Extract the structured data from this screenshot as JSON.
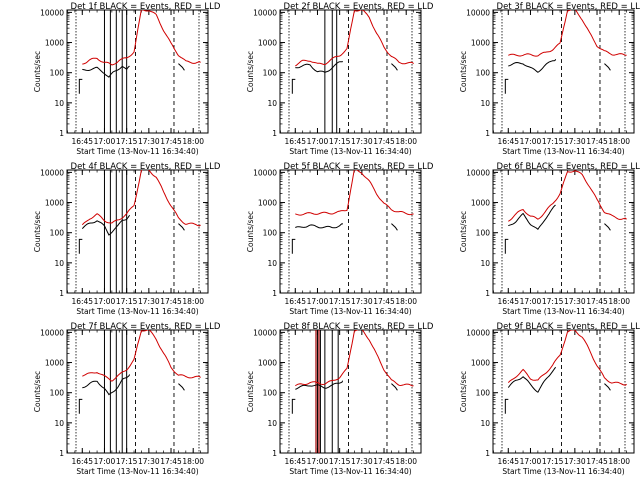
{
  "figure": {
    "ylabel": "Counts/sec",
    "xlabel": "Start Time (13-Nov-11 16:34:40)",
    "y_ticks": [
      "1",
      "10",
      "100",
      "1000",
      "10000"
    ],
    "x_ticks": [
      "16:45",
      "17:00",
      "17:15",
      "17:30",
      "17:45",
      "18:00"
    ],
    "colors": {
      "events": "#000000",
      "lld": "#d00000",
      "axes": "#000000",
      "background": "#ffffff"
    }
  },
  "chart_data": [
    {
      "type": "line",
      "title": "Det 1f BLACK = Events, RED = LLD",
      "xlabel": "Start Time (13-Nov-11 16:34:40)",
      "ylabel": "Counts/sec",
      "yscale": "log",
      "ylim": [
        1,
        12000
      ],
      "xlim": [
        "16:34:40",
        "18:10"
      ],
      "series": [
        {
          "name": "Events",
          "color": "#000000",
          "x": [
            "16:45",
            "16:50",
            "16:55",
            "17:00",
            "17:03",
            "17:06",
            "17:09",
            "17:12",
            "17:15",
            "17:17"
          ],
          "y": [
            120,
            130,
            140,
            100,
            70,
            100,
            130,
            170,
            120,
            160
          ]
        },
        {
          "name": "LLD",
          "color": "#d00000",
          "x": [
            "16:45",
            "16:50",
            "16:55",
            "17:00",
            "17:05",
            "17:10",
            "17:15",
            "17:20",
            "17:25",
            "17:30",
            "17:35",
            "17:40",
            "17:45",
            "17:50",
            "17:55",
            "18:00",
            "18:05"
          ],
          "y": [
            200,
            260,
            300,
            220,
            180,
            260,
            300,
            500,
            12000,
            12000,
            8000,
            2600,
            900,
            400,
            230,
            220,
            220
          ]
        }
      ],
      "vlines": [
        "17:00",
        "17:04",
        "17:08",
        "17:12",
        "17:15"
      ]
    },
    {
      "type": "line",
      "title": "Det 2f BLACK = Events, RED = LLD",
      "xlabel": "Start Time (13-Nov-11 16:34:40)",
      "ylabel": "Counts/sec",
      "yscale": "log",
      "ylim": [
        1,
        12000
      ],
      "xlim": [
        "16:34:40",
        "18:10"
      ],
      "series": [
        {
          "name": "Events",
          "color": "#000000",
          "x": [
            "16:45",
            "16:50",
            "16:55",
            "17:00",
            "17:05",
            "17:10",
            "17:15",
            "17:17"
          ],
          "y": [
            150,
            170,
            180,
            110,
            100,
            150,
            220,
            240
          ]
        },
        {
          "name": "LLD",
          "color": "#d00000",
          "x": [
            "16:45",
            "16:50",
            "16:55",
            "17:00",
            "17:05",
            "17:10",
            "17:15",
            "17:20",
            "17:25",
            "17:30",
            "17:35",
            "17:40",
            "17:45",
            "17:50",
            "17:55",
            "18:00",
            "18:05"
          ],
          "y": [
            180,
            240,
            260,
            190,
            200,
            280,
            380,
            600,
            12000,
            12000,
            7000,
            2000,
            700,
            350,
            220,
            210,
            200
          ]
        }
      ],
      "vlines": [
        "17:05",
        "17:10",
        "17:13"
      ]
    },
    {
      "type": "line",
      "title": "Det 3f BLACK = Events, RED = LLD",
      "xlabel": "Start Time (13-Nov-11 16:34:40)",
      "ylabel": "Counts/sec",
      "yscale": "log",
      "ylim": [
        1,
        12000
      ],
      "xlim": [
        "16:34:40",
        "18:10"
      ],
      "series": [
        {
          "name": "Events",
          "color": "#000000",
          "x": [
            "16:45",
            "16:50",
            "16:55",
            "17:00",
            "17:05",
            "17:10",
            "17:15",
            "17:17"
          ],
          "y": [
            180,
            200,
            210,
            140,
            110,
            170,
            260,
            280
          ]
        },
        {
          "name": "LLD",
          "color": "#d00000",
          "x": [
            "16:45",
            "16:50",
            "16:55",
            "17:00",
            "17:05",
            "17:10",
            "17:15",
            "17:20",
            "17:25",
            "17:30",
            "17:35",
            "17:40",
            "17:45",
            "17:50",
            "17:55",
            "18:00",
            "18:05"
          ],
          "y": [
            380,
            380,
            390,
            390,
            380,
            450,
            600,
            900,
            12000,
            12000,
            6000,
            2000,
            800,
            500,
            420,
            400,
            380
          ]
        }
      ],
      "vlines": []
    },
    {
      "type": "line",
      "title": "Det 4f BLACK = Events, RED = LLD",
      "xlabel": "Start Time (13-Nov-11 16:34:40)",
      "ylabel": "Counts/sec",
      "yscale": "log",
      "ylim": [
        1,
        12000
      ],
      "xlim": [
        "16:34:40",
        "18:10"
      ],
      "series": [
        {
          "name": "Events",
          "color": "#000000",
          "x": [
            "16:45",
            "16:50",
            "16:55",
            "17:00",
            "17:03",
            "17:06",
            "17:09",
            "17:12",
            "17:15",
            "17:17"
          ],
          "y": [
            140,
            200,
            260,
            160,
            90,
            120,
            160,
            260,
            300,
            380
          ]
        },
        {
          "name": "LLD",
          "color": "#d00000",
          "x": [
            "16:45",
            "16:50",
            "16:55",
            "17:00",
            "17:05",
            "17:10",
            "17:15",
            "17:20",
            "17:25",
            "17:30",
            "17:35",
            "17:40",
            "17:45",
            "17:50",
            "17:55",
            "18:00",
            "18:05"
          ],
          "y": [
            170,
            300,
            400,
            260,
            200,
            280,
            420,
            800,
            12000,
            12000,
            7000,
            2200,
            800,
            300,
            200,
            190,
            180
          ]
        }
      ],
      "vlines": [
        "17:00",
        "17:04",
        "17:08",
        "17:12",
        "17:15"
      ]
    },
    {
      "type": "line",
      "title": "Det 5f BLACK = Events, RED = LLD",
      "xlabel": "Start Time (13-Nov-11 16:34:40)",
      "ylabel": "Counts/sec",
      "yscale": "log",
      "ylim": [
        1,
        12000
      ],
      "xlim": [
        "16:34:40",
        "18:10"
      ],
      "series": [
        {
          "name": "Events",
          "color": "#000000",
          "x": [
            "16:45",
            "16:50",
            "16:55",
            "17:00",
            "17:05",
            "17:10",
            "17:15",
            "17:17"
          ],
          "y": [
            140,
            160,
            170,
            160,
            150,
            150,
            170,
            190
          ]
        },
        {
          "name": "LLD",
          "color": "#d00000",
          "x": [
            "16:45",
            "16:50",
            "16:55",
            "17:00",
            "17:05",
            "17:10",
            "17:15",
            "17:20",
            "17:25",
            "17:30",
            "17:35",
            "17:40",
            "17:45",
            "17:50",
            "17:55",
            "18:00",
            "18:05"
          ],
          "y": [
            400,
            420,
            430,
            440,
            440,
            450,
            480,
            600,
            12000,
            10000,
            5000,
            2000,
            900,
            600,
            480,
            440,
            420
          ]
        }
      ],
      "vlines": []
    },
    {
      "type": "line",
      "title": "Det 6f BLACK = Events, RED = LLD",
      "xlabel": "Start Time (13-Nov-11 16:34:40)",
      "ylabel": "Counts/sec",
      "yscale": "log",
      "ylim": [
        1,
        12000
      ],
      "xlim": [
        "16:34:40",
        "18:10"
      ],
      "series": [
        {
          "name": "Events",
          "color": "#000000",
          "x": [
            "16:45",
            "16:50",
            "16:55",
            "17:00",
            "17:05",
            "17:10",
            "17:15",
            "17:17"
          ],
          "y": [
            160,
            240,
            400,
            200,
            120,
            300,
            600,
            800
          ]
        },
        {
          "name": "LLD",
          "color": "#d00000",
          "x": [
            "16:45",
            "16:50",
            "16:55",
            "17:00",
            "17:05",
            "17:10",
            "17:15",
            "17:20",
            "17:25",
            "17:30",
            "17:35",
            "17:40",
            "17:45",
            "17:50",
            "17:55",
            "18:00",
            "18:05"
          ],
          "y": [
            250,
            400,
            600,
            350,
            280,
            500,
            900,
            2000,
            10000,
            12000,
            8000,
            3500,
            1200,
            500,
            350,
            300,
            280
          ]
        }
      ],
      "vlines": []
    },
    {
      "type": "line",
      "title": "Det 7f BLACK = Events, RED = LLD",
      "xlabel": "Start Time (13-Nov-11 16:34:40)",
      "ylabel": "Counts/sec",
      "yscale": "log",
      "ylim": [
        1,
        12000
      ],
      "xlim": [
        "16:34:40",
        "18:10"
      ],
      "series": [
        {
          "name": "Events",
          "color": "#000000",
          "x": [
            "16:45",
            "16:50",
            "16:55",
            "17:00",
            "17:03",
            "17:06",
            "17:09",
            "17:12",
            "17:15",
            "17:17"
          ],
          "y": [
            150,
            200,
            240,
            140,
            80,
            110,
            160,
            260,
            300,
            400
          ]
        },
        {
          "name": "LLD",
          "color": "#d00000",
          "x": [
            "16:45",
            "16:50",
            "16:55",
            "17:00",
            "17:05",
            "17:10",
            "17:15",
            "17:20",
            "17:25",
            "17:30",
            "17:35",
            "17:40",
            "17:45",
            "17:50",
            "17:55",
            "18:00",
            "18:05"
          ],
          "y": [
            380,
            420,
            500,
            340,
            260,
            380,
            600,
            1200,
            12000,
            12000,
            6000,
            2000,
            700,
            380,
            340,
            330,
            320
          ]
        }
      ],
      "vlines": [
        "17:00",
        "17:04",
        "17:08",
        "17:12",
        "17:15"
      ]
    },
    {
      "type": "line",
      "title": "Det 8f BLACK = Events, RED = LLD",
      "xlabel": "Start Time (13-Nov-11 16:34:40)",
      "ylabel": "Counts/sec",
      "yscale": "log",
      "ylim": [
        1,
        12000
      ],
      "xlim": [
        "16:34:40",
        "18:10"
      ],
      "series": [
        {
          "name": "Events",
          "color": "#000000",
          "x": [
            "16:45",
            "16:50",
            "16:55",
            "17:00",
            "17:05",
            "17:10",
            "17:15",
            "17:17"
          ],
          "y": [
            140,
            160,
            180,
            170,
            150,
            170,
            220,
            250
          ]
        },
        {
          "name": "LLD",
          "color": "#d00000",
          "x": [
            "16:45",
            "16:50",
            "16:55",
            "17:00",
            "17:05",
            "17:10",
            "17:15",
            "17:20",
            "17:25",
            "17:30",
            "17:35",
            "17:40",
            "17:45",
            "17:50",
            "17:55",
            "18:00",
            "18:05"
          ],
          "y": [
            170,
            190,
            220,
            210,
            200,
            240,
            330,
            600,
            12000,
            12000,
            6000,
            1800,
            600,
            250,
            190,
            180,
            170
          ]
        }
      ],
      "vlines": [
        "17:00",
        "17:02",
        "17:05",
        "17:10",
        "17:14"
      ],
      "red_vlines": [
        "16:59",
        "17:01"
      ]
    },
    {
      "type": "line",
      "title": "Det 9f BLACK = Events, RED = LLD",
      "xlabel": "Start Time (13-Nov-11 16:34:40)",
      "ylabel": "Counts/sec",
      "yscale": "log",
      "ylim": [
        1,
        12000
      ],
      "xlim": [
        "16:34:40",
        "18:10"
      ],
      "series": [
        {
          "name": "Events",
          "color": "#000000",
          "x": [
            "16:45",
            "16:50",
            "16:55",
            "17:00",
            "17:05",
            "17:10",
            "17:15",
            "17:17"
          ],
          "y": [
            150,
            250,
            350,
            180,
            110,
            250,
            550,
            700
          ]
        },
        {
          "name": "LLD",
          "color": "#d00000",
          "x": [
            "16:45",
            "16:50",
            "16:55",
            "17:00",
            "17:05",
            "17:10",
            "17:15",
            "17:20",
            "17:25",
            "17:30",
            "17:35",
            "17:40",
            "17:45",
            "17:50",
            "17:55",
            "18:00",
            "18:05"
          ],
          "y": [
            200,
            350,
            550,
            300,
            250,
            450,
            800,
            1800,
            10000,
            12000,
            7000,
            2500,
            800,
            300,
            220,
            200,
            190
          ]
        }
      ],
      "vlines": []
    }
  ]
}
